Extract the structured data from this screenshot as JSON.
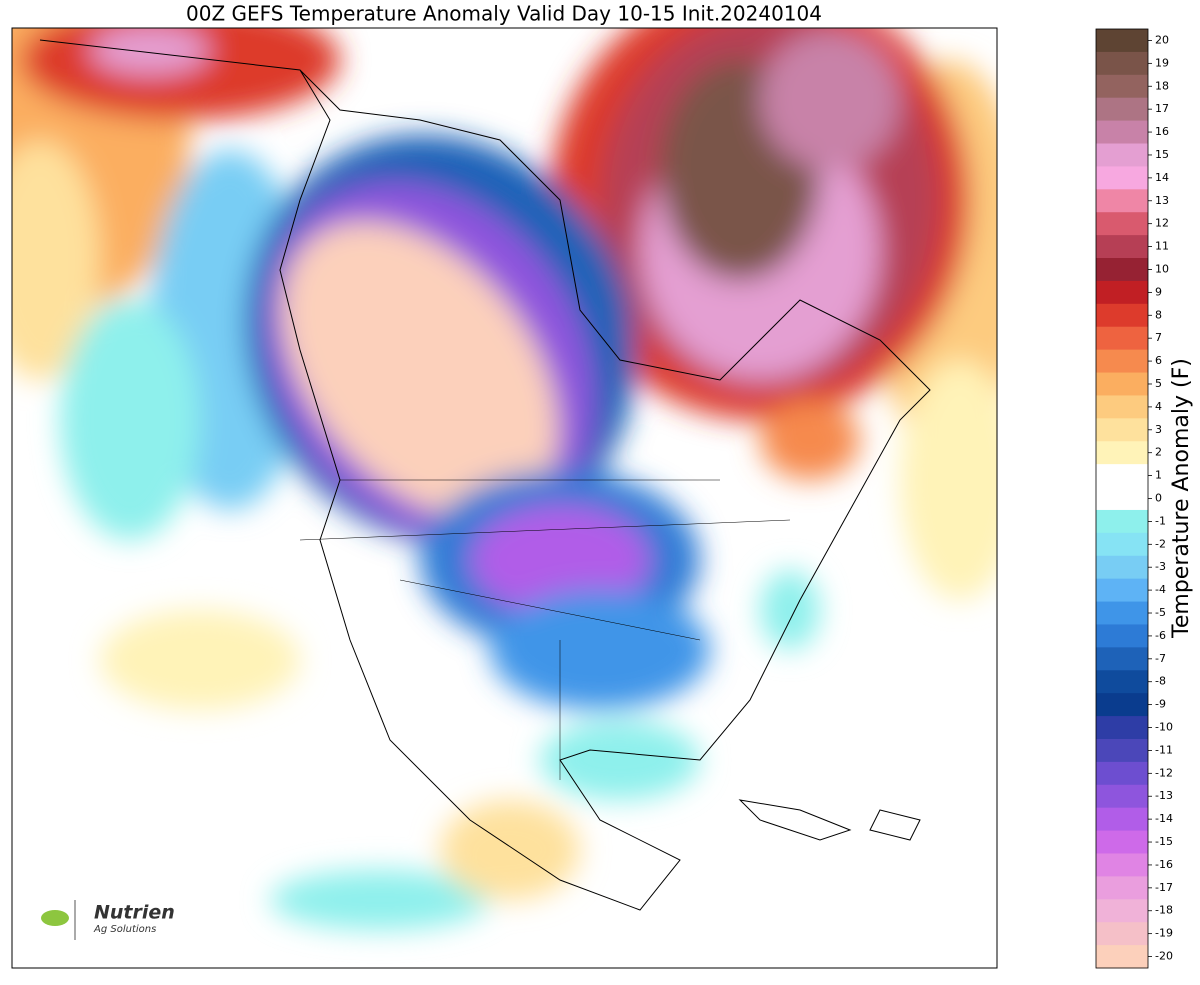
{
  "title": "00Z GEFS Temperature Anomaly Valid Day 10-15 Init.20240104",
  "colorbar": {
    "label": "Temperature Anomaly (F)",
    "ticks": [
      20,
      19,
      18,
      17,
      16,
      15,
      14,
      13,
      12,
      11,
      10,
      9,
      8,
      7,
      6,
      5,
      4,
      3,
      2,
      1,
      0,
      -1,
      -2,
      -3,
      -4,
      -5,
      -6,
      -7,
      -8,
      -9,
      -10,
      -11,
      -12,
      -13,
      -14,
      -15,
      -16,
      -17,
      -18,
      -19,
      -20
    ],
    "colors": [
      "#5e4433",
      "#7a5449",
      "#93635f",
      "#ad7484",
      "#c882a8",
      "#e49fd2",
      "#f7a8e0",
      "#ef86a6",
      "#d95a6e",
      "#b63f55",
      "#962233",
      "#c11f24",
      "#dd3b2c",
      "#ee6340",
      "#f68a4e",
      "#fbae60",
      "#fdcb7f",
      "#fee19d",
      "#fff3b8",
      "#ffffff",
      "#ffffff",
      "#8ef0ec",
      "#86e3f4",
      "#78cdf4",
      "#5eb3f5",
      "#3f95e8",
      "#2d7bd6",
      "#1e62b8",
      "#0f4b9d",
      "#0a3c8e",
      "#2e3da6",
      "#4b47b9",
      "#6d4ed0",
      "#8e55dd",
      "#b15de8",
      "#ce6ae9",
      "#e084e4",
      "#ea9ede",
      "#f0b2d8",
      "#f5c0c8",
      "#fcd0bb"
    ]
  },
  "logo": {
    "brand": "Nutrien",
    "subtitle": "Ag Solutions"
  }
}
